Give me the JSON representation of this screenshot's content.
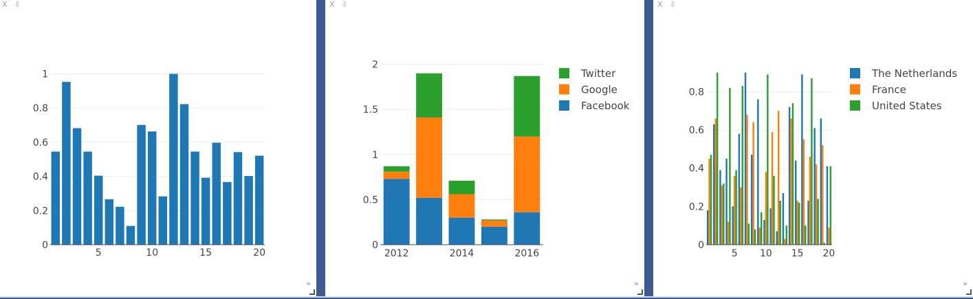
{
  "controls": {
    "close": "X",
    "download": "⇩",
    "expand": "»"
  },
  "chart_data": [
    {
      "type": "bar",
      "x": [
        1,
        2,
        3,
        4,
        5,
        6,
        7,
        8,
        9,
        10,
        11,
        12,
        13,
        14,
        15,
        16,
        17,
        18,
        19,
        20
      ],
      "values": [
        0.545,
        0.953,
        0.682,
        0.545,
        0.404,
        0.266,
        0.222,
        0.11,
        0.701,
        0.663,
        0.283,
        1.0,
        0.823,
        0.545,
        0.392,
        0.597,
        0.367,
        0.542,
        0.402,
        0.521
      ],
      "color": "#1f77b4",
      "xticks": [
        5,
        10,
        15,
        20
      ],
      "yticks": [
        "0",
        "0.2",
        "0.4",
        "0.6",
        "0.8",
        "1"
      ],
      "ylim": [
        0,
        1.03
      ],
      "xlim": [
        0.5,
        20.5
      ],
      "grid": true
    },
    {
      "type": "bar",
      "stacked": true,
      "categories": [
        2012,
        2013,
        2014,
        2015,
        2016
      ],
      "series": [
        {
          "name": "Facebook",
          "color": "#1f77b4",
          "values": [
            0.73,
            0.52,
            0.3,
            0.2,
            0.36
          ]
        },
        {
          "name": "Google",
          "color": "#ff7f0e",
          "values": [
            0.08,
            0.89,
            0.26,
            0.07,
            0.84
          ]
        },
        {
          "name": "Twitter",
          "color": "#2ca02c",
          "values": [
            0.06,
            0.49,
            0.15,
            0.01,
            0.67
          ]
        }
      ],
      "xticks": [
        "2012",
        "2014",
        "2016"
      ],
      "yticks": [
        "0",
        "0.5",
        "1",
        "1.5",
        "2"
      ],
      "ylim": [
        0,
        2.05
      ],
      "legend": "right",
      "grid": true
    },
    {
      "type": "bar",
      "grouped": true,
      "x": [
        1,
        2,
        3,
        4,
        5,
        6,
        7,
        8,
        9,
        10,
        11,
        12,
        13,
        14,
        15,
        16,
        17,
        18,
        19,
        20
      ],
      "series": [
        {
          "name": "The Netherlands",
          "color": "#1f77b4",
          "values": [
            0.18,
            0.63,
            0.39,
            0.45,
            0.2,
            0.58,
            0.9,
            0.47,
            0.76,
            0.13,
            0.19,
            0.07,
            0.27,
            0.72,
            0.44,
            0.89,
            0.23,
            0.61,
            0.66,
            0.41
          ]
        },
        {
          "name": "France",
          "color": "#ff7f0e",
          "values": [
            0.45,
            0.66,
            0.31,
            0.12,
            0.36,
            0.3,
            0.68,
            0.64,
            0.09,
            0.38,
            0.59,
            0.7,
            0.03,
            0.66,
            0.23,
            0.55,
            0.46,
            0.42,
            0.52,
            0.09
          ]
        },
        {
          "name": "United States",
          "color": "#2ca02c",
          "values": [
            0.47,
            0.9,
            0.32,
            0.82,
            0.39,
            0.83,
            0.11,
            0.08,
            0.17,
            0.89,
            0.36,
            0.23,
            0.1,
            0.74,
            0.22,
            0.1,
            0.87,
            0.24,
            0.01,
            0.41
          ]
        }
      ],
      "xticks": [
        5,
        10,
        15,
        20
      ],
      "yticks": [
        "0",
        "0.2",
        "0.4",
        "0.6",
        "0.8"
      ],
      "ylim": [
        0,
        0.92
      ],
      "xlim": [
        0.5,
        20.5
      ],
      "legend": "right",
      "grid": true
    }
  ]
}
